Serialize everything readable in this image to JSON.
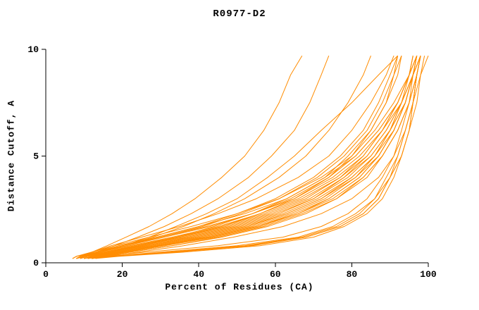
{
  "chart_data": {
    "type": "line",
    "title": "R0977-D2",
    "xlabel": "Percent of Residues (CA)",
    "ylabel": "Distance Cutoff, A",
    "xlim": [
      0,
      100
    ],
    "ylim": [
      0,
      10
    ],
    "xticks": [
      0,
      20,
      40,
      60,
      80,
      100
    ],
    "yticks": [
      0,
      5,
      10
    ],
    "grid": false,
    "legend": "none",
    "line_color": "#ff8c00",
    "axis_color": "#000000",
    "y_grid": [
      0.2,
      0.3,
      0.5,
      0.8,
      1.2,
      1.7,
      2.3,
      3.0,
      4.0,
      5.0,
      6.2,
      7.5,
      8.8,
      9.7
    ],
    "series_x": [
      [
        10,
        14,
        26,
        45,
        62,
        72,
        79,
        84,
        88,
        91,
        93,
        95,
        96,
        97
      ],
      [
        8,
        10,
        15,
        24,
        35,
        47,
        58,
        68,
        77,
        83,
        88,
        92,
        95,
        96
      ],
      [
        11,
        16,
        30,
        50,
        66,
        75,
        81,
        86,
        89,
        92,
        94,
        96,
        97,
        98
      ],
      [
        8,
        9,
        13,
        20,
        30,
        42,
        54,
        65,
        75,
        82,
        88,
        93,
        96,
        98
      ],
      [
        12,
        18,
        34,
        54,
        68,
        77,
        83,
        87,
        90,
        93,
        95,
        96,
        97,
        98
      ],
      [
        9,
        11,
        17,
        26,
        38,
        50,
        61,
        70,
        79,
        85,
        90,
        94,
        96,
        97
      ],
      [
        10,
        13,
        20,
        30,
        43,
        55,
        65,
        74,
        82,
        87,
        91,
        94,
        96,
        97
      ],
      [
        7,
        8,
        12,
        18,
        27,
        38,
        50,
        61,
        72,
        80,
        86,
        91,
        95,
        97
      ],
      [
        12,
        17,
        32,
        52,
        67,
        76,
        82,
        86,
        90,
        92,
        94,
        96,
        97,
        98
      ],
      [
        8,
        10,
        16,
        25,
        36,
        48,
        59,
        69,
        78,
        84,
        89,
        93,
        96,
        97
      ],
      [
        10,
        12,
        19,
        29,
        41,
        53,
        63,
        72,
        81,
        86,
        90,
        93,
        95,
        96
      ],
      [
        8,
        9,
        14,
        22,
        33,
        45,
        56,
        66,
        76,
        83,
        88,
        92,
        95,
        96
      ],
      [
        13,
        19,
        36,
        56,
        70,
        78,
        84,
        88,
        91,
        93,
        95,
        97,
        98,
        99
      ],
      [
        9,
        11,
        18,
        27,
        39,
        51,
        62,
        71,
        80,
        86,
        90,
        94,
        96,
        98
      ],
      [
        10,
        13,
        21,
        31,
        44,
        56,
        66,
        75,
        83,
        88,
        92,
        95,
        97,
        98
      ],
      [
        8,
        10,
        15,
        23,
        34,
        46,
        57,
        67,
        77,
        84,
        89,
        93,
        96,
        98
      ],
      [
        11,
        14,
        22,
        33,
        46,
        58,
        68,
        76,
        84,
        88,
        92,
        95,
        97,
        98
      ],
      [
        7,
        8,
        13,
        19,
        29,
        40,
        52,
        63,
        73,
        81,
        87,
        92,
        95,
        97
      ],
      [
        12,
        18,
        33,
        53,
        68,
        77,
        83,
        87,
        90,
        93,
        95,
        96,
        97,
        98
      ],
      [
        10,
        12,
        18,
        28,
        40,
        52,
        63,
        72,
        80,
        86,
        91,
        94,
        96,
        97
      ],
      [
        8,
        9,
        13,
        20,
        29,
        40,
        50,
        60,
        70,
        77,
        83,
        87,
        90,
        92
      ],
      [
        9,
        11,
        16,
        24,
        34,
        44,
        54,
        63,
        73,
        79,
        85,
        89,
        91,
        93
      ],
      [
        8,
        10,
        14,
        21,
        30,
        41,
        51,
        61,
        71,
        78,
        84,
        88,
        91,
        92
      ],
      [
        7,
        8,
        12,
        17,
        25,
        35,
        45,
        55,
        66,
        74,
        80,
        85,
        89,
        91
      ],
      [
        10,
        12,
        17,
        25,
        35,
        46,
        56,
        65,
        74,
        80,
        85,
        89,
        92,
        93
      ],
      [
        8,
        9,
        12,
        16,
        21,
        27,
        33,
        39,
        46,
        52,
        57,
        61,
        64,
        67
      ],
      [
        9,
        10,
        13,
        18,
        24,
        31,
        38,
        45,
        53,
        59,
        65,
        69,
        72,
        74
      ],
      [
        8,
        10,
        14,
        20,
        28,
        36,
        44,
        52,
        61,
        68,
        74,
        79,
        83,
        85
      ],
      [
        8,
        10,
        14,
        20,
        27,
        34,
        42,
        50,
        58,
        65,
        72,
        80,
        87,
        92
      ],
      [
        11,
        13,
        19,
        29,
        42,
        54,
        64,
        73,
        81,
        87,
        91,
        94,
        96,
        97
      ],
      [
        12,
        15,
        22,
        33,
        45,
        57,
        67,
        76,
        83,
        88,
        92,
        95,
        97,
        98
      ],
      [
        8,
        9,
        14,
        21,
        31,
        43,
        54,
        64,
        74,
        81,
        87,
        92,
        95,
        97
      ],
      [
        9,
        11,
        17,
        26,
        37,
        49,
        60,
        70,
        78,
        85,
        90,
        93,
        96,
        97
      ],
      [
        11,
        14,
        20,
        31,
        43,
        55,
        66,
        74,
        82,
        87,
        91,
        94,
        96,
        98
      ],
      [
        13,
        16,
        24,
        36,
        49,
        62,
        72,
        80,
        87,
        91,
        94,
        96,
        98,
        100
      ]
    ]
  }
}
